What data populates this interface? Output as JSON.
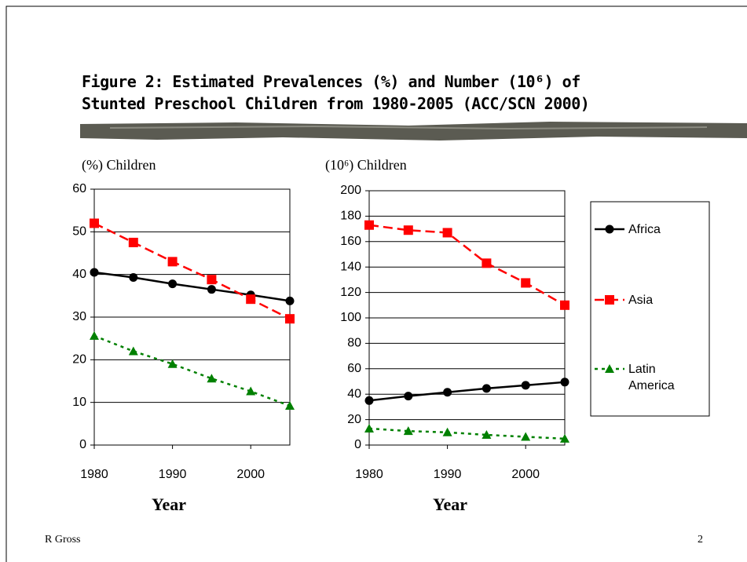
{
  "title": [
    "Figure 2: Estimated Prevalences (%) and Number (10⁶) of",
    "Stunted Preschool Children from 1980-2005 (ACC/SCN 2000)"
  ],
  "footer": {
    "author": "R Gross",
    "page": "2"
  },
  "chart_data": [
    {
      "type": "line",
      "y_label": "(%) Children",
      "x_label": "Year",
      "x": [
        1980,
        1985,
        1990,
        1995,
        2000,
        2005
      ],
      "xlim": [
        1980,
        2005
      ],
      "xticks": [
        1980,
        1990,
        2000
      ],
      "ylim": [
        0,
        60
      ],
      "yticks": [
        0,
        10,
        20,
        30,
        40,
        50,
        60
      ],
      "grid": true,
      "series": [
        {
          "color": "#000000",
          "marker": "circle",
          "dash": "solid",
          "values": [
            40.5,
            39.3,
            37.8,
            36.5,
            35.2,
            33.8
          ]
        },
        {
          "color": "#ff0000",
          "marker": "square",
          "dash": "dashed",
          "values": [
            52,
            47.5,
            43,
            38.8,
            34.2,
            29.6
          ]
        },
        {
          "color": "#008000",
          "marker": "triangle",
          "dash": "dotted",
          "values": [
            25.6,
            22,
            19,
            15.6,
            12.6,
            9.2
          ]
        }
      ]
    },
    {
      "type": "line",
      "y_label": "(10⁶) Children",
      "x_label": "Year",
      "x": [
        1980,
        1985,
        1990,
        1995,
        2000,
        2005
      ],
      "xlim": [
        1980,
        2005
      ],
      "xticks": [
        1980,
        1990,
        2000
      ],
      "ylim": [
        0,
        200
      ],
      "yticks": [
        0,
        20,
        40,
        60,
        80,
        100,
        120,
        140,
        160,
        180,
        200
      ],
      "grid": true,
      "legend": "right",
      "series": [
        {
          "name": "Africa",
          "color": "#000000",
          "marker": "circle",
          "dash": "solid",
          "values": [
            35,
            38.5,
            41.5,
            44.5,
            47,
            49.5
          ]
        },
        {
          "name": "Asia",
          "color": "#ff0000",
          "marker": "square",
          "dash": "dashed",
          "values": [
            173,
            169,
            167,
            143,
            127.5,
            110
          ]
        },
        {
          "name": "Latin America",
          "color": "#008000",
          "marker": "triangle",
          "dash": "dotted",
          "values": [
            13,
            11,
            10,
            8,
            6.5,
            5
          ]
        }
      ]
    }
  ]
}
